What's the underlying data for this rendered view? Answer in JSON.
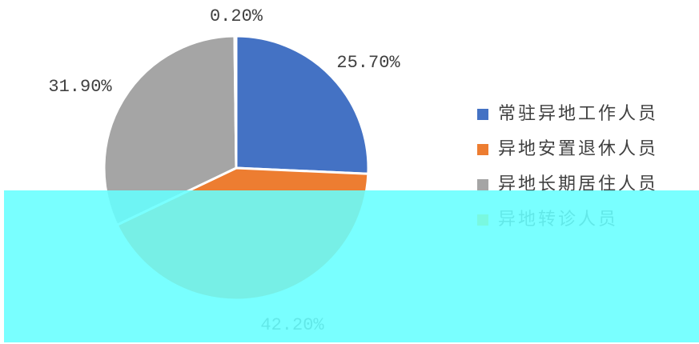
{
  "chart_data": {
    "type": "pie",
    "categories": [
      "常驻异地工作人员",
      "异地安置退休人员",
      "异地长期居住人员",
      "异地转诊人员"
    ],
    "values": [
      25.7,
      42.2,
      31.9,
      0.2
    ],
    "value_labels": [
      "25.70%",
      "42.20%",
      "31.90%",
      "0.20%"
    ],
    "colors": [
      "#4472c4",
      "#ed7d31",
      "#a5a5a5",
      "#ffc000"
    ],
    "legend": "right"
  }
}
